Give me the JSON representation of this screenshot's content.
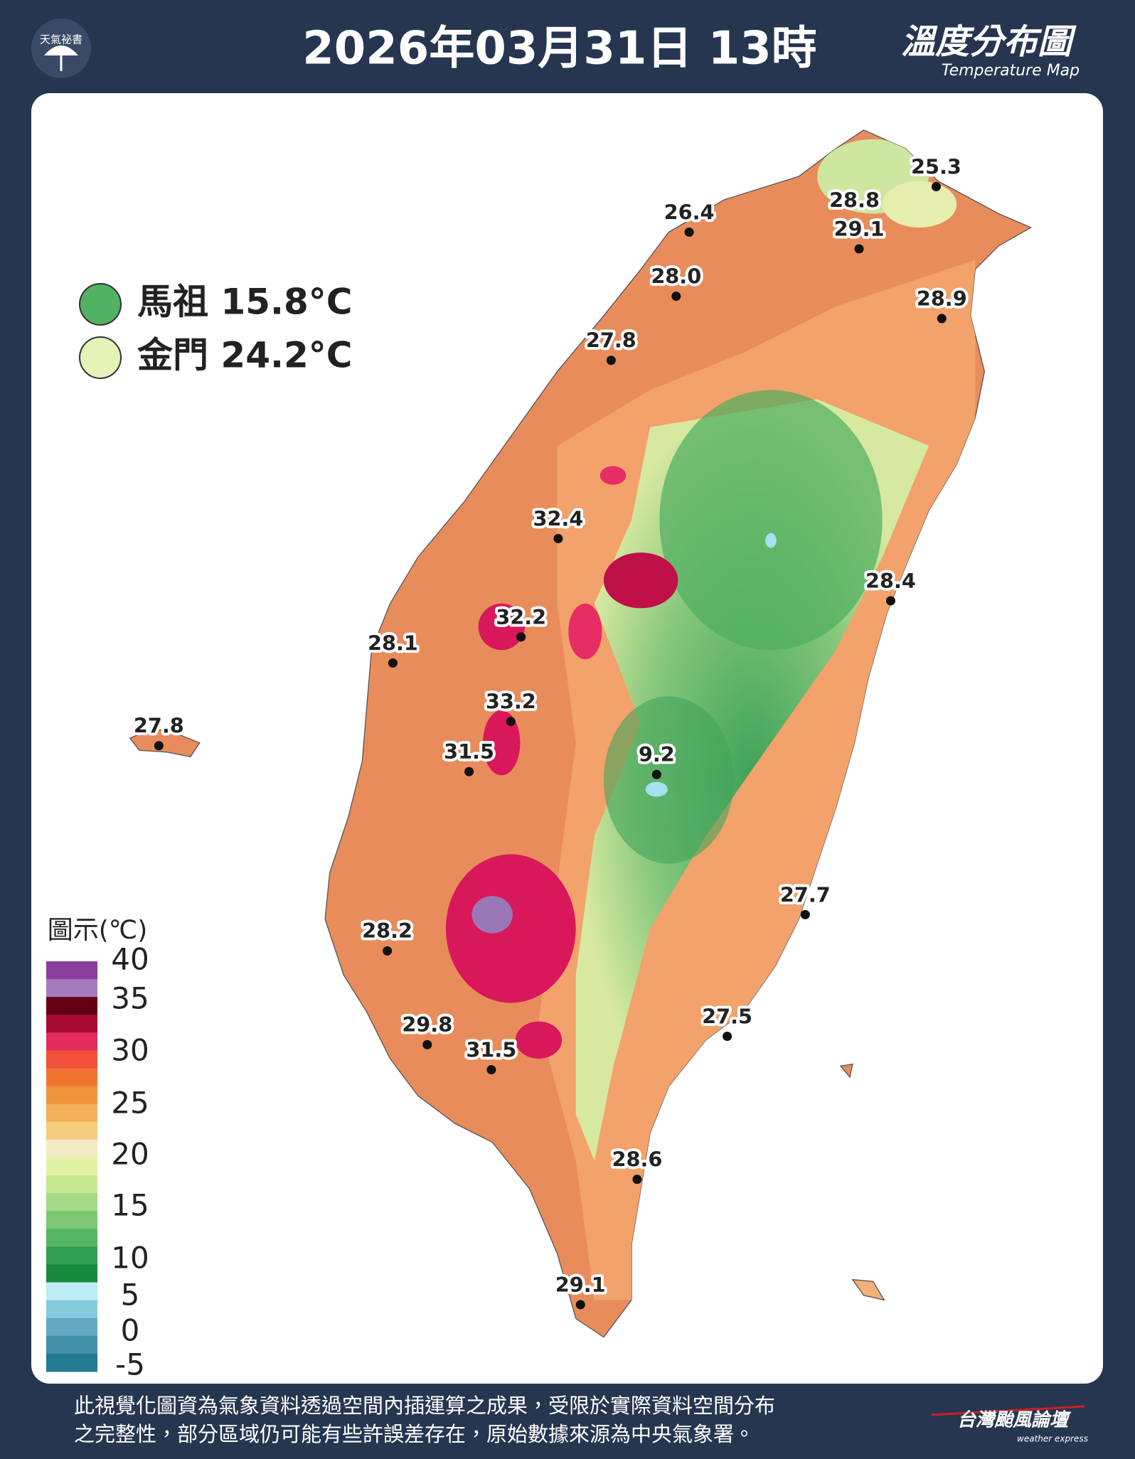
{
  "header": {
    "logo_text": "天氣祕書",
    "title": "2026年03月31日 13時",
    "map_title": "溫度分布圖",
    "map_subtitle": "Temperature Map"
  },
  "islands": [
    {
      "label": "馬祖 15.8°C",
      "color": "#52b264"
    },
    {
      "label": "金門 24.2°C",
      "color": "#e4f3b8"
    }
  ],
  "stations": [
    {
      "label": "25.3"
    },
    {
      "label": "28.8"
    },
    {
      "label": "29.1"
    },
    {
      "label": "26.4"
    },
    {
      "label": "28.0"
    },
    {
      "label": "28.9"
    },
    {
      "label": "27.8"
    },
    {
      "label": "32.4"
    },
    {
      "label": "28.4"
    },
    {
      "label": "32.2"
    },
    {
      "label": "28.1"
    },
    {
      "label": "33.2"
    },
    {
      "label": "27.8"
    },
    {
      "label": "31.5"
    },
    {
      "label": "9.2"
    },
    {
      "label": "27.7"
    },
    {
      "label": "28.2"
    },
    {
      "label": "27.5"
    },
    {
      "label": "29.8"
    },
    {
      "label": "31.5"
    },
    {
      "label": "28.6"
    },
    {
      "label": "29.1"
    }
  ],
  "colorbar": {
    "title": "圖示(℃)",
    "ticks": [
      40,
      35,
      30,
      25,
      20,
      15,
      10,
      5,
      0,
      -5
    ],
    "colors": [
      "#8a3ea0",
      "#a57bbd",
      "#650012",
      "#a80c36",
      "#e42c5a",
      "#f0503c",
      "#f07430",
      "#f0943c",
      "#f4b05a",
      "#f5cc7c",
      "#f2ecc4",
      "#e2f2a4",
      "#c6e890",
      "#a4da86",
      "#7ec874",
      "#56b664",
      "#2f9e50",
      "#178a3e",
      "#bcecf4",
      "#86cade",
      "#62aac2",
      "#4290aa",
      "#237a92"
    ]
  },
  "footer": {
    "lines": [
      "此視覺化圖資為氣象資料透過空間內插運算之成果，受限於實際資料空間分布",
      "之完整性，部分區域仍可能有些許誤差存在，原始數據來源為中央氣象署。"
    ],
    "brand": "台灣颱風論壇",
    "brand_sub": "weather express"
  }
}
